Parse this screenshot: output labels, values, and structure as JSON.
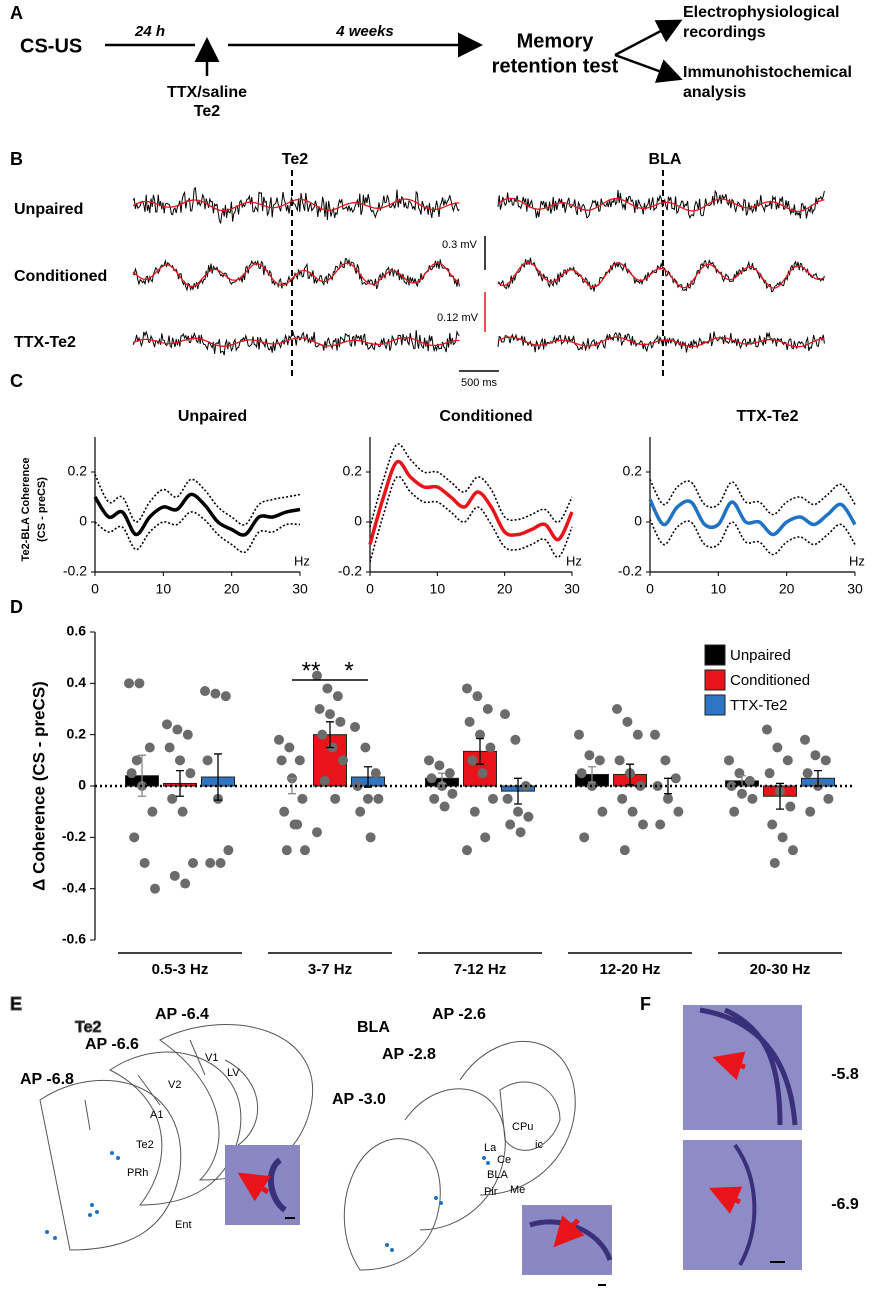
{
  "panel_a": {
    "label": "A",
    "start": "CS-US",
    "delay": "24 h",
    "treatment": [
      "TTX/saline",
      "Te2"
    ],
    "interval": "4 weeks",
    "test": [
      "Memory",
      "retention test"
    ],
    "outcomes": [
      [
        "Electrophysiological",
        "recordings"
      ],
      [
        "Immunohistochemical",
        "analysis"
      ]
    ]
  },
  "panel_b": {
    "label": "B",
    "regions": [
      "Te2",
      "BLA"
    ],
    "groups": [
      "Unpaired",
      "Conditioned",
      "TTX-Te2"
    ],
    "scale_bars": [
      "0.3 mV",
      "0.12 mV",
      "500 ms"
    ]
  },
  "panel_c_label": "C",
  "panel_d_label": "D",
  "chart_data": [
    {
      "type": "line",
      "title": "Unpaired",
      "ylabel": [
        "Te2-BLA Coherence",
        "(CS - preCS)"
      ],
      "xlabel": "Hz",
      "x": [
        0,
        2,
        4,
        6,
        8,
        10,
        12,
        14,
        16,
        18,
        20,
        22,
        24,
        26,
        28,
        30
      ],
      "xlim": [
        0,
        30
      ],
      "xticks": [
        0,
        10,
        20,
        30
      ],
      "ylim": [
        -0.2,
        0.3
      ],
      "yticks": [
        -0.2,
        0,
        0.2
      ],
      "series": [
        {
          "color": "#000000",
          "style": "solid",
          "values": [
            0.1,
            0.02,
            0.04,
            -0.05,
            0.02,
            0.06,
            0.05,
            0.11,
            0.07,
            0.0,
            -0.03,
            -0.05,
            0.02,
            0.02,
            0.04,
            0.05
          ]
        },
        {
          "color": "#000000",
          "style": "dotted",
          "values": [
            0.19,
            0.08,
            0.1,
            0.0,
            0.08,
            0.13,
            0.1,
            0.17,
            0.13,
            0.06,
            0.02,
            -0.01,
            0.07,
            0.09,
            0.1,
            0.11
          ]
        },
        {
          "color": "#000000",
          "style": "dotted",
          "values": [
            0.0,
            -0.04,
            -0.02,
            -0.11,
            -0.04,
            0.0,
            -0.01,
            0.04,
            0.01,
            -0.05,
            -0.09,
            -0.12,
            -0.04,
            -0.04,
            -0.01,
            -0.01
          ]
        }
      ]
    },
    {
      "type": "line",
      "title": "Conditioned",
      "xlabel": "Hz",
      "x": [
        0,
        2,
        4,
        6,
        8,
        10,
        12,
        14,
        16,
        18,
        20,
        22,
        24,
        26,
        28,
        30
      ],
      "xlim": [
        0,
        30
      ],
      "xticks": [
        0,
        10,
        20,
        30
      ],
      "ylim": [
        -0.2,
        0.3
      ],
      "yticks": [
        -0.2,
        0,
        0.2
      ],
      "series": [
        {
          "color": "#e8141a",
          "style": "solid",
          "values": [
            -0.09,
            0.1,
            0.24,
            0.18,
            0.14,
            0.14,
            0.1,
            0.06,
            0.12,
            0.06,
            -0.04,
            -0.05,
            -0.03,
            -0.01,
            -0.07,
            0.04
          ]
        },
        {
          "color": "#000000",
          "style": "dotted",
          "values": [
            -0.02,
            0.17,
            0.31,
            0.25,
            0.2,
            0.2,
            0.16,
            0.12,
            0.18,
            0.13,
            0.02,
            0.01,
            0.03,
            0.05,
            0.0,
            0.1
          ]
        },
        {
          "color": "#000000",
          "style": "dotted",
          "values": [
            -0.16,
            0.03,
            0.18,
            0.12,
            0.08,
            0.08,
            0.04,
            0.0,
            0.06,
            -0.01,
            -0.1,
            -0.11,
            -0.09,
            -0.07,
            -0.14,
            -0.02
          ]
        }
      ]
    },
    {
      "type": "line",
      "title": "TTX-Te2",
      "xlabel": "Hz",
      "x": [
        0,
        2,
        4,
        6,
        8,
        10,
        12,
        14,
        16,
        18,
        20,
        22,
        24,
        26,
        28,
        30
      ],
      "xlim": [
        0,
        30
      ],
      "xticks": [
        0,
        10,
        20,
        30
      ],
      "ylim": [
        -0.2,
        0.3
      ],
      "yticks": [
        -0.2,
        0,
        0.2
      ],
      "series": [
        {
          "color": "#1f73c4",
          "style": "solid",
          "values": [
            0.09,
            -0.01,
            0.06,
            0.08,
            -0.01,
            -0.01,
            0.08,
            0.0,
            0.0,
            -0.05,
            0.0,
            0.02,
            -0.01,
            0.03,
            0.07,
            -0.01
          ]
        },
        {
          "color": "#000000",
          "style": "dotted",
          "values": [
            0.17,
            0.07,
            0.14,
            0.16,
            0.07,
            0.07,
            0.16,
            0.08,
            0.08,
            0.03,
            0.08,
            0.1,
            0.07,
            0.11,
            0.15,
            0.07
          ]
        },
        {
          "color": "#000000",
          "style": "dotted",
          "values": [
            0.01,
            -0.09,
            -0.02,
            0.0,
            -0.09,
            -0.09,
            0.0,
            -0.08,
            -0.08,
            -0.13,
            -0.08,
            -0.06,
            -0.09,
            -0.05,
            -0.01,
            -0.09
          ]
        }
      ]
    },
    {
      "type": "bar",
      "ylabel": "Δ Coherence (CS - preCS)",
      "categories": [
        "0.5-3 Hz",
        "3-7 Hz",
        "7-12 Hz",
        "12-20 Hz",
        "20-30 Hz"
      ],
      "ylim": [
        -0.6,
        0.6
      ],
      "yticks": [
        -0.6,
        -0.4,
        -0.2,
        0,
        0.2,
        0.4,
        0.6
      ],
      "legend": "top-right",
      "annotations": [
        "**",
        "*"
      ],
      "point_color": "#6b6b6b",
      "series": [
        {
          "name": "Unpaired",
          "color": "#000000",
          "values": [
            0.04,
            0.0,
            0.03,
            0.045,
            0.02
          ],
          "errors": [
            0.08,
            0.03,
            0.02,
            0.03,
            0.02
          ],
          "points": [
            [
              0.4,
              0.4,
              0.15,
              0.05,
              0.0,
              -0.1,
              -0.2,
              -0.3,
              -0.4,
              0.1
            ],
            [
              0.18,
              0.15,
              0.1,
              0.1,
              0.03,
              -0.05,
              -0.1,
              -0.15,
              -0.25,
              -0.25,
              -0.15
            ],
            [
              0.1,
              0.08,
              0.05,
              0.03,
              0.0,
              -0.03,
              -0.05,
              -0.08
            ],
            [
              0.2,
              0.12,
              0.1,
              0.05,
              0.0,
              -0.1,
              -0.2
            ],
            [
              0.1,
              0.05,
              0.02,
              0.0,
              -0.03,
              -0.05,
              -0.1
            ]
          ]
        },
        {
          "name": "Conditioned",
          "color": "#e8141a",
          "values": [
            0.01,
            0.2,
            0.135,
            0.045,
            -0.04
          ],
          "errors": [
            0.05,
            0.05,
            0.05,
            0.04,
            0.05
          ],
          "points": [
            [
              0.24,
              0.22,
              0.2,
              0.15,
              0.1,
              0.05,
              -0.05,
              -0.1,
              -0.3,
              -0.35,
              -0.38
            ],
            [
              0.43,
              0.38,
              0.35,
              0.3,
              0.28,
              0.25,
              0.2,
              0.15,
              0.1,
              0.02,
              -0.05,
              -0.18
            ],
            [
              0.38,
              0.35,
              0.3,
              0.25,
              0.2,
              0.15,
              0.1,
              0.05,
              -0.05,
              -0.1,
              -0.2,
              -0.25
            ],
            [
              0.3,
              0.25,
              0.2,
              0.1,
              0.05,
              0.0,
              -0.05,
              -0.1,
              -0.15,
              -0.25
            ],
            [
              0.22,
              0.15,
              0.1,
              0.05,
              -0.02,
              -0.08,
              -0.15,
              -0.2,
              -0.25,
              -0.3
            ]
          ]
        },
        {
          "name": "TTX-Te2",
          "color": "#2e75c6",
          "values": [
            0.035,
            0.035,
            -0.02,
            0.0,
            0.03
          ],
          "errors": [
            0.09,
            0.04,
            0.05,
            0.03,
            0.03
          ],
          "points": [
            [
              0.37,
              0.36,
              0.35,
              0.1,
              -0.05,
              -0.25,
              -0.3,
              -0.3
            ],
            [
              0.23,
              0.15,
              0.05,
              0.0,
              -0.05,
              -0.05,
              -0.1,
              -0.2
            ],
            [
              0.28,
              0.18,
              0.0,
              -0.05,
              -0.1,
              -0.12,
              -0.15,
              -0.18
            ],
            [
              0.2,
              0.1,
              0.03,
              0.0,
              -0.05,
              -0.1,
              -0.15
            ],
            [
              0.18,
              0.12,
              0.1,
              0.05,
              0.0,
              -0.05,
              -0.1
            ]
          ]
        }
      ]
    }
  ],
  "panel_e": {
    "label": "E",
    "te2": {
      "title": "Te2",
      "sections": [
        "AP -6.4",
        "AP -6.6",
        "AP -6.8"
      ],
      "areas": [
        "V1",
        "LV",
        "V2",
        "A1",
        "Te2",
        "PRh",
        "Ent"
      ]
    },
    "bla": {
      "title": "BLA",
      "sections": [
        "AP -2.6",
        "AP -2.8",
        "AP -3.0"
      ],
      "areas": [
        "CPu",
        "ic",
        "La",
        "Ce",
        "BLA",
        "Pir",
        "Me"
      ]
    }
  },
  "panel_f": {
    "label": "F",
    "sections": [
      "-5.8",
      "-6.9"
    ]
  }
}
